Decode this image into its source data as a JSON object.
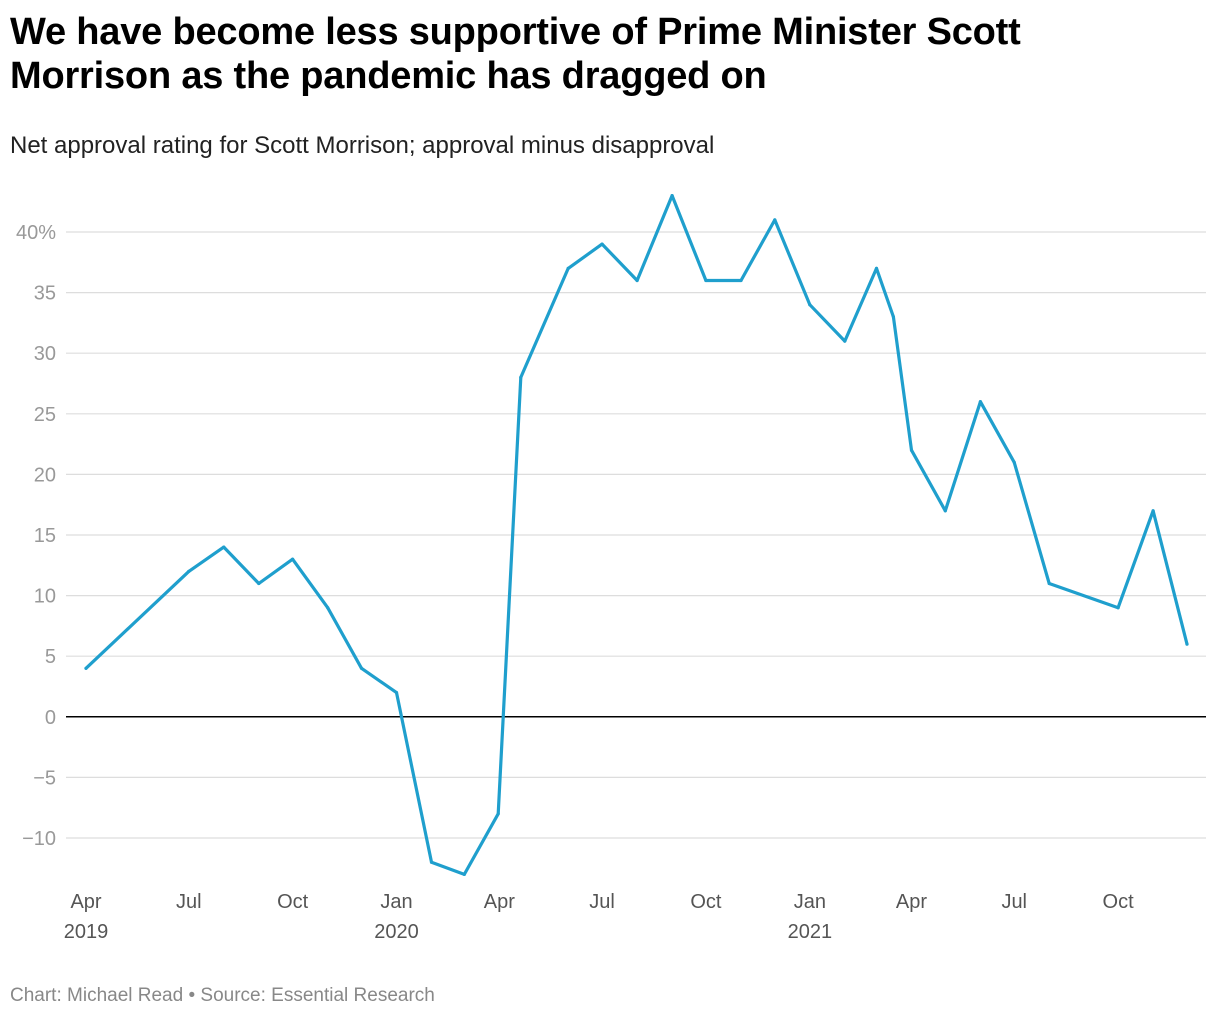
{
  "header": {
    "title": "We have become less supportive of Prime Minister Scott Morrison as the pandemic has dragged on",
    "subtitle": "Net approval rating for Scott Morrison; approval minus disapproval"
  },
  "footer": {
    "caption": "Chart: Michael Read • Source: Essential Research"
  },
  "colors": {
    "line": "#1f9fcd",
    "grid": "#dddddd",
    "zero_line": "#000000",
    "tick_y": "#999999",
    "tick_x": "#555555"
  },
  "chart_data": {
    "type": "line",
    "title": "We have become less supportive of Prime Minister Scott Morrison as the pandemic has dragged on",
    "subtitle": "Net approval rating for Scott Morrison; approval minus disapproval",
    "xlabel": "",
    "ylabel": "",
    "ylim": [
      -13,
      43
    ],
    "xlim": [
      "2019-04-01",
      "2021-12-31"
    ],
    "y_ticks": [
      {
        "value": 40,
        "label": "40%"
      },
      {
        "value": 35,
        "label": "35"
      },
      {
        "value": 30,
        "label": "30"
      },
      {
        "value": 25,
        "label": "25"
      },
      {
        "value": 20,
        "label": "20"
      },
      {
        "value": 15,
        "label": "15"
      },
      {
        "value": 10,
        "label": "10"
      },
      {
        "value": 5,
        "label": "5"
      },
      {
        "value": 0,
        "label": "0"
      },
      {
        "value": -5,
        "label": "−5"
      },
      {
        "value": -10,
        "label": "−10"
      }
    ],
    "x_ticks": [
      {
        "date": "2019-04-01",
        "label": "Apr",
        "year": "2019"
      },
      {
        "date": "2019-07-01",
        "label": "Jul",
        "year": ""
      },
      {
        "date": "2019-10-01",
        "label": "Oct",
        "year": ""
      },
      {
        "date": "2020-01-01",
        "label": "Jan",
        "year": "2020"
      },
      {
        "date": "2020-04-01",
        "label": "Apr",
        "year": ""
      },
      {
        "date": "2020-07-01",
        "label": "Jul",
        "year": ""
      },
      {
        "date": "2020-10-01",
        "label": "Oct",
        "year": ""
      },
      {
        "date": "2021-01-01",
        "label": "Jan",
        "year": "2021"
      },
      {
        "date": "2021-04-01",
        "label": "Apr",
        "year": ""
      },
      {
        "date": "2021-07-01",
        "label": "Jul",
        "year": ""
      },
      {
        "date": "2021-10-01",
        "label": "Oct",
        "year": ""
      }
    ],
    "grid": true,
    "legend": "none",
    "series": [
      {
        "points": [
          {
            "x": "2019-04-01",
            "y": 4
          },
          {
            "x": "2019-07-01",
            "y": 12
          },
          {
            "x": "2019-08-01",
            "y": 14
          },
          {
            "x": "2019-09-01",
            "y": 11
          },
          {
            "x": "2019-10-01",
            "y": 13
          },
          {
            "x": "2019-11-01",
            "y": 9
          },
          {
            "x": "2019-12-01",
            "y": 4
          },
          {
            "x": "2020-01-01",
            "y": 2
          },
          {
            "x": "2020-02-01",
            "y": -12
          },
          {
            "x": "2020-03-01",
            "y": -13
          },
          {
            "x": "2020-03-31",
            "y": -8
          },
          {
            "x": "2020-04-20",
            "y": 28
          },
          {
            "x": "2020-06-01",
            "y": 37
          },
          {
            "x": "2020-07-01",
            "y": 39
          },
          {
            "x": "2020-08-01",
            "y": 36
          },
          {
            "x": "2020-09-01",
            "y": 43
          },
          {
            "x": "2020-10-01",
            "y": 36
          },
          {
            "x": "2020-11-01",
            "y": 36
          },
          {
            "x": "2020-12-01",
            "y": 41
          },
          {
            "x": "2021-01-01",
            "y": 34
          },
          {
            "x": "2021-02-01",
            "y": 31
          },
          {
            "x": "2021-03-01",
            "y": 37
          },
          {
            "x": "2021-03-16",
            "y": 33
          },
          {
            "x": "2021-04-01",
            "y": 22
          },
          {
            "x": "2021-05-01",
            "y": 17
          },
          {
            "x": "2021-06-01",
            "y": 26
          },
          {
            "x": "2021-07-01",
            "y": 21
          },
          {
            "x": "2021-08-01",
            "y": 11
          },
          {
            "x": "2021-10-01",
            "y": 9
          },
          {
            "x": "2021-11-01",
            "y": 17
          },
          {
            "x": "2021-12-01",
            "y": 6
          }
        ]
      }
    ]
  }
}
